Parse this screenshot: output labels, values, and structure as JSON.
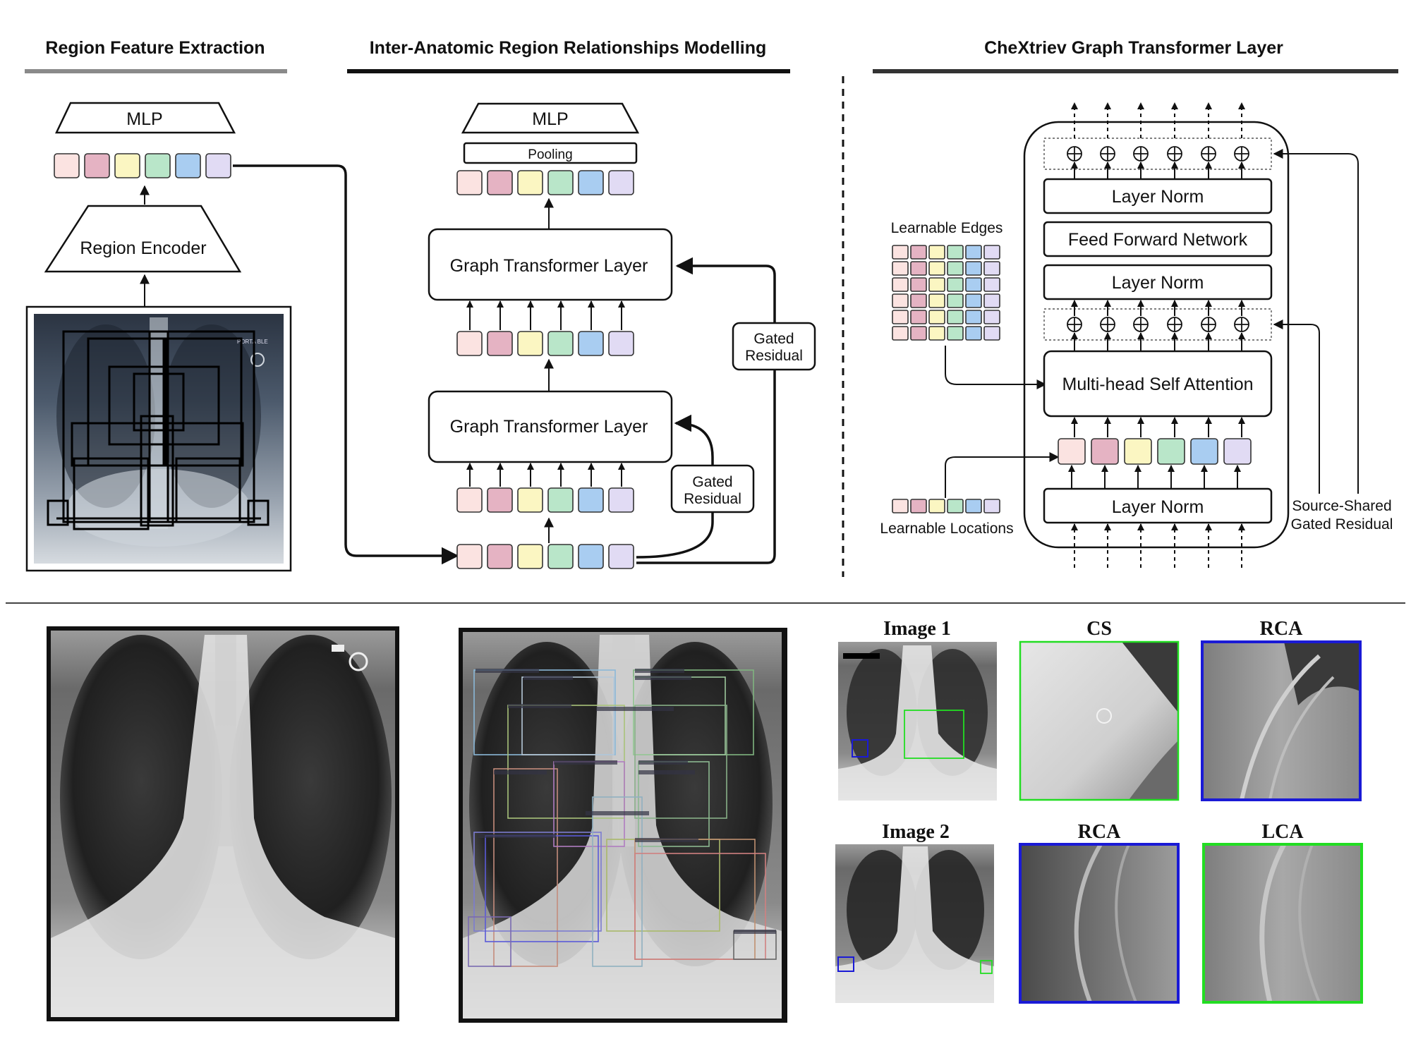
{
  "headings": {
    "region_feature_extraction": "Region Feature Extraction",
    "inter_anatomic": "Inter-Anatomic Region Relationships Modelling",
    "graph_transformer_layer": "CheXtriev Graph Transformer Layer"
  },
  "left_panel": {
    "mlp": "MLP",
    "region_encoder": "Region Encoder",
    "xray_marker": "PORTA BLE"
  },
  "middle_panel": {
    "mlp": "MLP",
    "pooling": "Pooling",
    "gtl_top": "Graph Transformer Layer",
    "gtl_bottom": "Graph Transformer Layer",
    "gated_residual_top_1": "Gated",
    "gated_residual_top_2": "Residual",
    "gated_residual_bottom_1": "Gated",
    "gated_residual_bottom_2": "Residual"
  },
  "right_panel": {
    "learnable_edges": "Learnable Edges",
    "learnable_locations": "Learnable Locations",
    "layer_norm_top": "Layer Norm",
    "feed_forward": "Feed Forward Network",
    "layer_norm_mid": "Layer Norm",
    "mhsa": "Multi-head Self Attention",
    "layer_norm_bottom": "Layer Norm",
    "source_shared_1": "Source-Shared",
    "source_shared_2": "Gated Residual"
  },
  "bottom_panels": {
    "image1": "Image 1",
    "image1_crop1": "CS",
    "image1_crop2": "RCA",
    "image2": "Image 2",
    "image2_crop1": "RCA",
    "image2_crop2": "LCA"
  },
  "colors": {
    "token_palette": [
      "#fbe3e1",
      "#e5b3c3",
      "#fbf6c2",
      "#b9e6c9",
      "#a9cdf1",
      "#e1dbf4"
    ],
    "green_box": "#22dd22",
    "blue_box": "#1a1ad6"
  }
}
